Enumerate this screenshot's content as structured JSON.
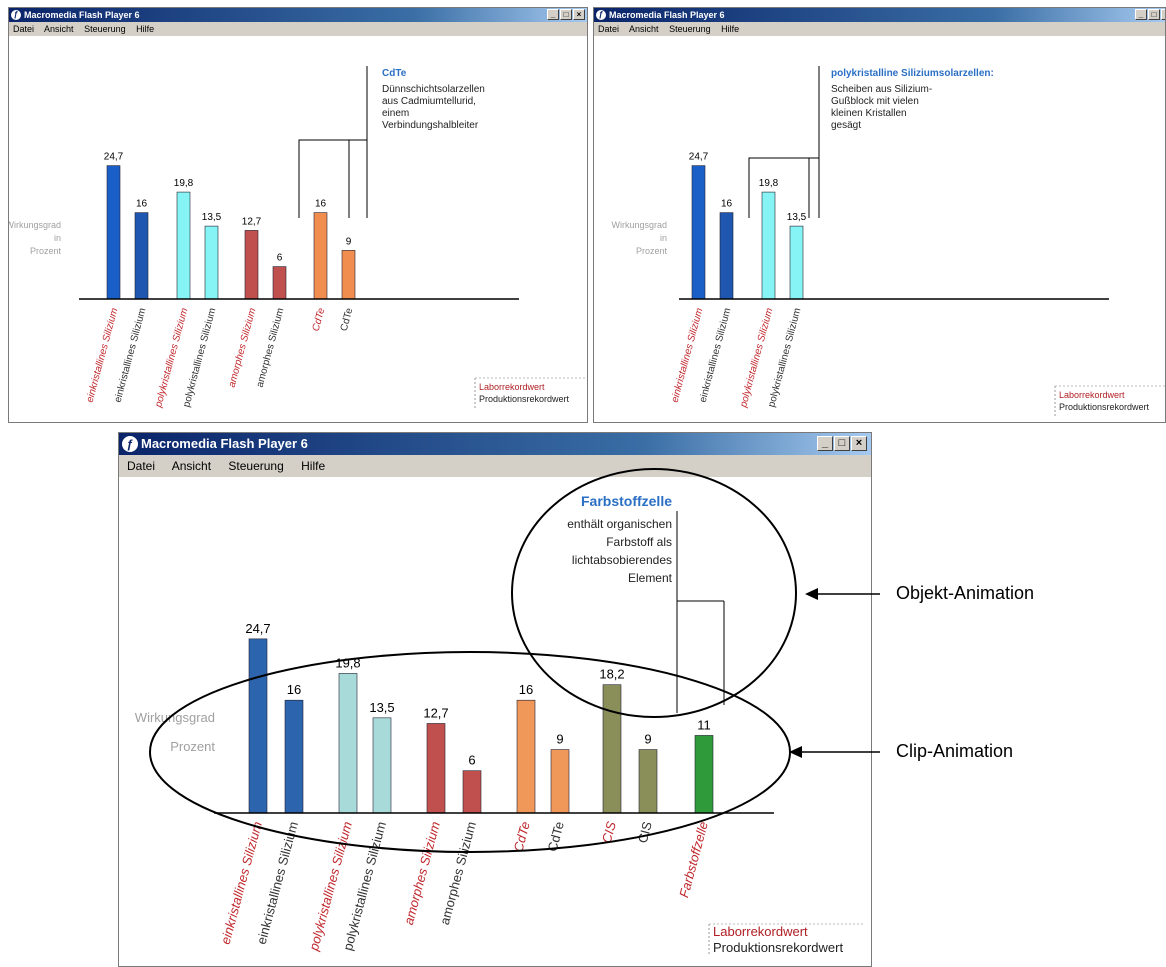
{
  "windows": [
    {
      "title": "Macromedia Flash Player 6",
      "menu": [
        "Datei",
        "Ansicht",
        "Steuerung",
        "Hilfe"
      ],
      "ylabel": [
        "Wirkungsgrad",
        "in",
        "Prozent"
      ],
      "callout": {
        "title": "CdTe",
        "lines": [
          "Dünnschichtsolarzellen",
          "aus Cadmiumtellurid,",
          "einem",
          "Verbindungshalbleiter"
        ]
      },
      "legend": {
        "lab": "Laborrekordwert",
        "prod": "Produktionsrekordwert"
      },
      "chart_data": {
        "type": "bar",
        "categories": [
          "einkristallines Silizium",
          "einkristallines Silizium",
          "polykristallines Silizium",
          "polykristallines Silizium",
          "amorphes Silizium",
          "amorphes Silizium",
          "CdTe",
          "CdTe"
        ],
        "values": [
          24.7,
          16,
          19.8,
          13.5,
          12.7,
          6,
          16,
          9
        ],
        "value_labels": [
          "24,7",
          "16",
          "19,8",
          "13,5",
          "12,7",
          "6",
          "16",
          "9"
        ],
        "kind": [
          "lab",
          "prod",
          "lab",
          "prod",
          "lab",
          "prod",
          "lab",
          "prod"
        ],
        "colors": [
          "#1a5fc8",
          "#1f56b0",
          "#86f4f4",
          "#86f4f4",
          "#c0504d",
          "#c0504d",
          "#f08d4f",
          "#f08d4f"
        ],
        "label_colors": {
          "lab": "#c0282d",
          "prod": "#333333"
        }
      }
    },
    {
      "title": "Macromedia Flash Player 6",
      "menu": [
        "Datei",
        "Ansicht",
        "Steuerung",
        "Hilfe"
      ],
      "ylabel": [
        "Wirkungsgrad",
        "in",
        "Prozent"
      ],
      "callout": {
        "title": "polykristalline Siliziumsolarzellen:",
        "lines": [
          "Scheiben aus Silizium-",
          "Gußblock mit vielen",
          "kleinen Kristallen",
          "gesägt"
        ]
      },
      "legend": {
        "lab": "Laborrekordwert",
        "prod": "Produktionsrekordwert"
      },
      "chart_data": {
        "type": "bar",
        "categories": [
          "einkristallines Silizium",
          "einkristallines Silizium",
          "polykristallines Silizium",
          "polykristallines Silizium"
        ],
        "values": [
          24.7,
          16,
          19.8,
          13.5
        ],
        "value_labels": [
          "24,7",
          "16",
          "19,8",
          "13,5"
        ],
        "kind": [
          "lab",
          "prod",
          "lab",
          "prod"
        ],
        "colors": [
          "#1a5fc8",
          "#1f56b0",
          "#86f4f4",
          "#86f4f4"
        ],
        "label_colors": {
          "lab": "#c0282d",
          "prod": "#333333"
        }
      }
    },
    {
      "title": "Macromedia Flash Player 6",
      "menu": [
        "Datei",
        "Ansicht",
        "Steuerung",
        "Hilfe"
      ],
      "ylabel": [
        "Wirkungsgrad",
        "Prozent"
      ],
      "callout": {
        "title": "Farbstoffzelle",
        "lines": [
          "enthält organischen",
          "Farbstoff als",
          "lichtabsobierendes",
          "Element"
        ]
      },
      "legend": {
        "lab": "Laborrekordwert",
        "prod": "Produktionsrekordwert"
      },
      "chart_data": {
        "type": "bar",
        "categories": [
          "einkristallines Silizium",
          "einkristallines Silizium",
          "polykristallines Silizium",
          "polykristallines Silizium",
          "amorphes Silizium",
          "amorphes Silizium",
          "CdTe",
          "CdTe",
          "CIS",
          "CIS",
          "Farbstoffzelle"
        ],
        "values": [
          24.7,
          16,
          19.8,
          13.5,
          12.7,
          6,
          16,
          9,
          18.2,
          9,
          11
        ],
        "value_labels": [
          "24,7",
          "16",
          "19,8",
          "13,5",
          "12,7",
          "6",
          "16",
          "9",
          "18,2",
          "9",
          "11"
        ],
        "kind": [
          "lab",
          "prod",
          "lab",
          "prod",
          "lab",
          "prod",
          "lab",
          "prod",
          "lab",
          "prod",
          "lab"
        ],
        "colors": [
          "#2d64ae",
          "#2d64ae",
          "#a8dada",
          "#a8dada",
          "#c0504d",
          "#c0504d",
          "#f0975a",
          "#f0975a",
          "#8a8f5a",
          "#8a8f5a",
          "#2e9a3a"
        ],
        "label_colors": {
          "lab": "#c0282d",
          "prod": "#333333"
        }
      }
    }
  ],
  "annotations": {
    "objekt": "Objekt-Animation",
    "clip": "Clip-Animation"
  }
}
